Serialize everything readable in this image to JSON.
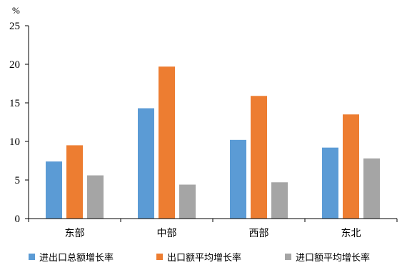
{
  "chart_data": {
    "type": "bar",
    "unit_label": "%",
    "categories": [
      "东部",
      "中部",
      "西部",
      "东北"
    ],
    "series": [
      {
        "name": "进出口总额增长率",
        "color": "#5B9BD5",
        "values": [
          7.4,
          14.3,
          10.2,
          9.2
        ]
      },
      {
        "name": "出口额平均增长率",
        "color": "#ED7D31",
        "values": [
          9.5,
          19.7,
          15.9,
          13.5
        ]
      },
      {
        "name": "进口额平均增长率",
        "color": "#A5A5A5",
        "values": [
          5.6,
          4.4,
          4.7,
          7.8
        ]
      }
    ],
    "ylim": [
      0,
      25
    ],
    "yticks": [
      "0",
      "5",
      "10",
      "15",
      "20",
      "25"
    ],
    "grid": false,
    "legend_position": "bottom"
  }
}
